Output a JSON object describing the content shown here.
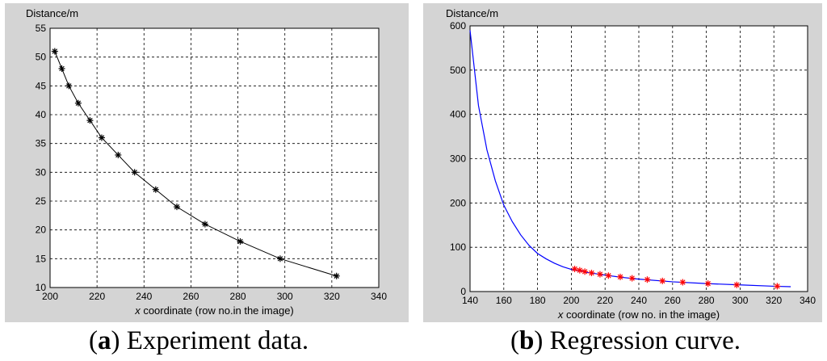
{
  "chart_data": [
    {
      "type": "line",
      "ylabel": "Distance/m",
      "xlabel_italic": "x",
      "xlabel_rest": " coordinate (row no.in the image)",
      "xlim": [
        200,
        340
      ],
      "ylim": [
        10,
        55
      ],
      "xticks": [
        200,
        220,
        240,
        260,
        280,
        300,
        320,
        340
      ],
      "yticks": [
        10,
        15,
        20,
        25,
        30,
        35,
        40,
        45,
        50,
        55
      ],
      "grid": true,
      "series": [
        {
          "marker": "asterisk",
          "color": "#000000",
          "x": [
            202,
            205,
            208,
            212,
            217,
            222,
            229,
            236,
            245,
            254,
            266,
            281,
            298,
            322
          ],
          "y": [
            51,
            48,
            45,
            42,
            39,
            36,
            33,
            30,
            27,
            24,
            21,
            18,
            15,
            12
          ]
        }
      ],
      "caption_letter": "a",
      "caption_text": " Experiment data."
    },
    {
      "type": "line",
      "ylabel": "Distance/m",
      "xlabel_italic": "x",
      "xlabel_rest": " coordinate (row no. in the image)",
      "xlim": [
        140,
        340
      ],
      "ylim": [
        0,
        600
      ],
      "xticks": [
        140,
        160,
        180,
        200,
        220,
        240,
        260,
        280,
        300,
        320,
        340
      ],
      "yticks": [
        0,
        100,
        200,
        300,
        400,
        500,
        600
      ],
      "grid": true,
      "curve": {
        "color": "#0000ff",
        "x": [
          140,
          145,
          150,
          155,
          160,
          165,
          170,
          175,
          180,
          185,
          190,
          195,
          200,
          210,
          220,
          230,
          240,
          260,
          280,
          300,
          320,
          330
        ],
        "y": [
          590,
          420,
          320,
          250,
          195,
          158,
          128,
          104,
          86,
          74,
          64,
          56,
          50,
          43,
          37,
          32,
          28,
          22,
          18,
          15,
          12,
          11
        ]
      },
      "series": [
        {
          "marker": "asterisk",
          "color": "#ff0000",
          "x": [
            202,
            205,
            208,
            212,
            217,
            222,
            229,
            236,
            245,
            254,
            266,
            281,
            298,
            322
          ],
          "y": [
            51,
            48,
            45,
            42,
            39,
            36,
            33,
            30,
            27,
            24,
            21,
            18,
            15,
            12
          ]
        }
      ],
      "caption_letter": "b",
      "caption_text": " Regression curve."
    }
  ]
}
